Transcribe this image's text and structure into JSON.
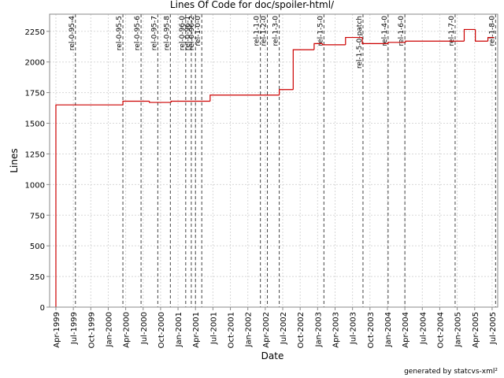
{
  "chart_data": {
    "type": "step-line",
    "title": "Lines Of Code for doc/spoiler-html/",
    "x_label": "Date",
    "y_label": "Lines",
    "footer": "generated by statcvs-xml²",
    "xlim": [
      1999.16,
      2005.58
    ],
    "xticks": [
      {
        "value": 1999.25,
        "label": "Apr-1999"
      },
      {
        "value": 1999.5,
        "label": "Jul-1999"
      },
      {
        "value": 1999.75,
        "label": "Oct-1999"
      },
      {
        "value": 2000.0,
        "label": "Jan-2000"
      },
      {
        "value": 2000.25,
        "label": "Apr-2000"
      },
      {
        "value": 2000.5,
        "label": "Jul-2000"
      },
      {
        "value": 2000.75,
        "label": "Oct-2000"
      },
      {
        "value": 2001.0,
        "label": "Jan-2001"
      },
      {
        "value": 2001.25,
        "label": "Apr-2001"
      },
      {
        "value": 2001.5,
        "label": "Jul-2001"
      },
      {
        "value": 2001.75,
        "label": "Oct-2001"
      },
      {
        "value": 2002.0,
        "label": "Jan-2002"
      },
      {
        "value": 2002.25,
        "label": "Apr-2002"
      },
      {
        "value": 2002.5,
        "label": "Jul-2002"
      },
      {
        "value": 2002.75,
        "label": "Oct-2002"
      },
      {
        "value": 2003.0,
        "label": "Jan-2003"
      },
      {
        "value": 2003.25,
        "label": "Apr-2003"
      },
      {
        "value": 2003.5,
        "label": "Jul-2003"
      },
      {
        "value": 2003.75,
        "label": "Oct-2003"
      },
      {
        "value": 2004.0,
        "label": "Jan-2004"
      },
      {
        "value": 2004.25,
        "label": "Apr-2004"
      },
      {
        "value": 2004.5,
        "label": "Jul-2004"
      },
      {
        "value": 2004.75,
        "label": "Oct-2004"
      },
      {
        "value": 2005.0,
        "label": "Jan-2005"
      },
      {
        "value": 2005.25,
        "label": "Apr-2005"
      },
      {
        "value": 2005.5,
        "label": "Jul-2005"
      }
    ],
    "ylim": [
      0,
      2390
    ],
    "yticks": [
      0,
      250,
      500,
      750,
      1000,
      1250,
      1500,
      1750,
      2000,
      2250
    ],
    "grid": true,
    "series": [
      {
        "name": "Lines",
        "color": "#cc0000",
        "x": [
          1999.25,
          1999.25,
          2000.21,
          2000.59,
          2000.9,
          2001.46,
          2002.45,
          2002.65,
          2002.95,
          2003.07,
          2003.4,
          2003.64,
          2004.01,
          2004.26,
          2005.1,
          2005.26,
          2005.44,
          2005.53
        ],
        "values": [
          0,
          1650,
          1680,
          1670,
          1680,
          1730,
          1775,
          2100,
          2150,
          2140,
          2200,
          2150,
          2160,
          2170,
          2265,
          2170,
          2200,
          2200
        ]
      }
    ],
    "markers": [
      {
        "x": 1999.53,
        "label": "rel-0-95-4"
      },
      {
        "x": 2000.21,
        "label": "rel-0-95-5"
      },
      {
        "x": 2000.47,
        "label": "rel-0-95-6"
      },
      {
        "x": 2000.71,
        "label": "rel-0-95-7"
      },
      {
        "x": 2000.89,
        "label": "rel-0-95-8"
      },
      {
        "x": 2001.11,
        "label": "rel-0-96-0"
      },
      {
        "x": 2001.19,
        "label": "rel-0-96-1"
      },
      {
        "x": 2001.25,
        "label": "rel-0-96-2"
      },
      {
        "x": 2001.34,
        "label": "rel-1-0-0"
      },
      {
        "x": 2002.18,
        "label": "rel-1-1-0"
      },
      {
        "x": 2002.28,
        "label": "rel-1-2-0"
      },
      {
        "x": 2002.45,
        "label": "rel-1-3-0"
      },
      {
        "x": 2003.09,
        "label": "rel-1-5-0"
      },
      {
        "x": 2003.65,
        "label": "rel-1-5-0-patch"
      },
      {
        "x": 2004.01,
        "label": "rel-1-4-0"
      },
      {
        "x": 2004.25,
        "label": "rel-1-6-0"
      },
      {
        "x": 2004.97,
        "label": "rel-1-7-0"
      },
      {
        "x": 2005.55,
        "label": "rel-1-8-0"
      }
    ]
  }
}
